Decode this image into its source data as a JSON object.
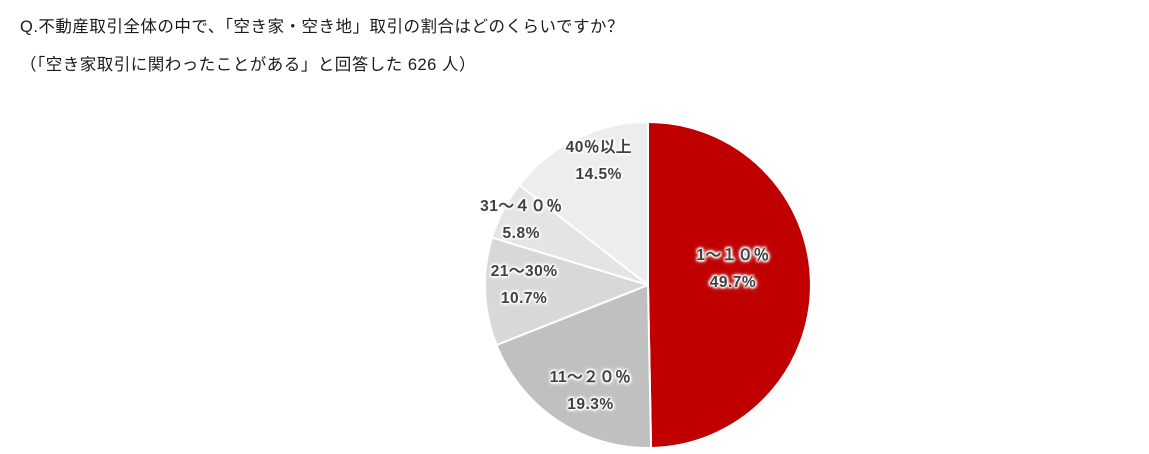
{
  "header": {
    "title": "Q.不動産取引全体の中で、「空き家・空き地」取引の割合はどのくらいですか？",
    "subtitle": "（「空き家取引に関わったことがある」と回答した 626 人）"
  },
  "chart_data": {
    "type": "pie",
    "title": "Q.不動産取引全体の中で、「空き家・空き地」取引の割合はどのくらいですか？",
    "subtitle": "（「空き家取引に関わったことがある」と回答した 626 人）",
    "respondents": "626",
    "unit": "%",
    "start_angle": "12-oclock",
    "direction": "clockwise",
    "divider_color": "#ffffff",
    "label_text_color": "#404040",
    "categories": [
      "1～１０％",
      "11～２０％",
      "21～30%",
      "31～４０％",
      "40％以上"
    ],
    "values": [
      49.7,
      19.3,
      10.7,
      5.8,
      14.5
    ],
    "slices": [
      {
        "label": "1～１０％",
        "value": 49.7,
        "value_label": "49.7%",
        "color": "#c00000"
      },
      {
        "label": "11～２０％",
        "value": 19.3,
        "value_label": "19.3%",
        "color": "#c0c0c0"
      },
      {
        "label": "21～30%",
        "value": 10.7,
        "value_label": "10.7%",
        "color": "#d8d8d8"
      },
      {
        "label": "31～４０％",
        "value": 5.8,
        "value_label": "5.8%",
        "color": "#e4e4e4"
      },
      {
        "label": "40％以上",
        "value": 14.5,
        "value_label": "14.5%",
        "color": "#ededed"
      }
    ]
  }
}
